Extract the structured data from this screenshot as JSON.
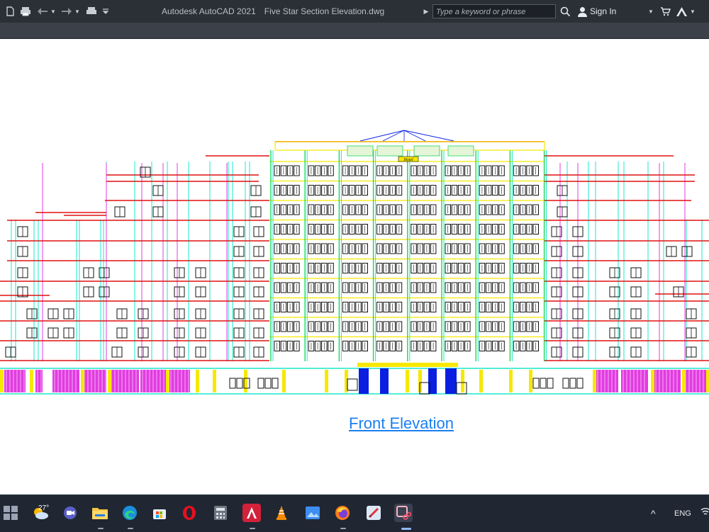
{
  "window": {
    "app_name": "Autodesk AutoCAD 2021",
    "file_name": "Five Star Section Elevation.dwg"
  },
  "search": {
    "placeholder": "Type a keyword or phrase"
  },
  "account": {
    "sign_in_label": "Sign In"
  },
  "drawing": {
    "caption": "Front Elevation",
    "sign_text": "Hotel",
    "colors": {
      "red": "#e01010",
      "cyan": "#19e8c8",
      "green": "#19d85a",
      "yellow": "#f6e800",
      "magenta": "#e23ce0",
      "blue": "#0a1fe0",
      "black": "#111111"
    }
  },
  "taskbar": {
    "weather_temp": "27°",
    "language": "ENG",
    "icons": [
      "start-icon",
      "weather-icon",
      "chat-icon",
      "file-explorer-icon",
      "edge-icon",
      "store-icon",
      "opera-icon",
      "calculator-icon",
      "autocad-icon",
      "vlc-icon",
      "photos-icon",
      "firefox-icon",
      "paint-icon",
      "snipping-tool-icon"
    ]
  }
}
